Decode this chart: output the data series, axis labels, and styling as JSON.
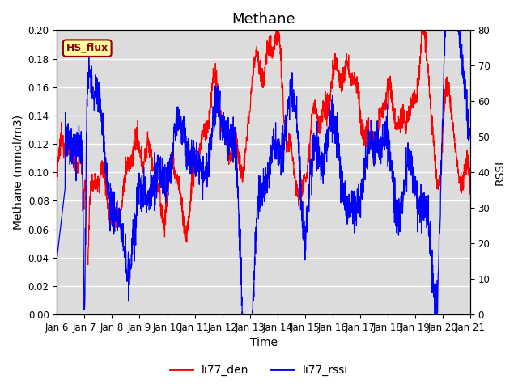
{
  "title": "Methane",
  "xlabel": "Time",
  "ylabel_left": "Methane (mmol/m3)",
  "ylabel_right": "RSSI",
  "ylim_left": [
    0.0,
    0.2
  ],
  "ylim_right": [
    0,
    80
  ],
  "xtick_labels": [
    "Jan 6",
    "Jan 7",
    "Jan 8",
    "Jan 9",
    "Jan 10",
    "Jan 11",
    "Jan 12",
    "Jan 13",
    "Jan 14",
    "Jan 15",
    "Jan 16",
    "Jan 17",
    "Jan 18",
    "Jan 19",
    "Jan 20",
    "Jan 21"
  ],
  "n_points": 2000,
  "color_red": "#FF0000",
  "color_blue": "#0000FF",
  "label_red": "li77_den",
  "label_blue": "li77_rssi",
  "annotation_text": "HS_flux",
  "annotation_bg": "#FFFFA0",
  "annotation_border": "#8B0000",
  "bg_color": "#DCDCDC",
  "title_fontsize": 13,
  "axis_label_fontsize": 10,
  "tick_fontsize": 8.5,
  "legend_fontsize": 10,
  "linewidth": 0.9
}
